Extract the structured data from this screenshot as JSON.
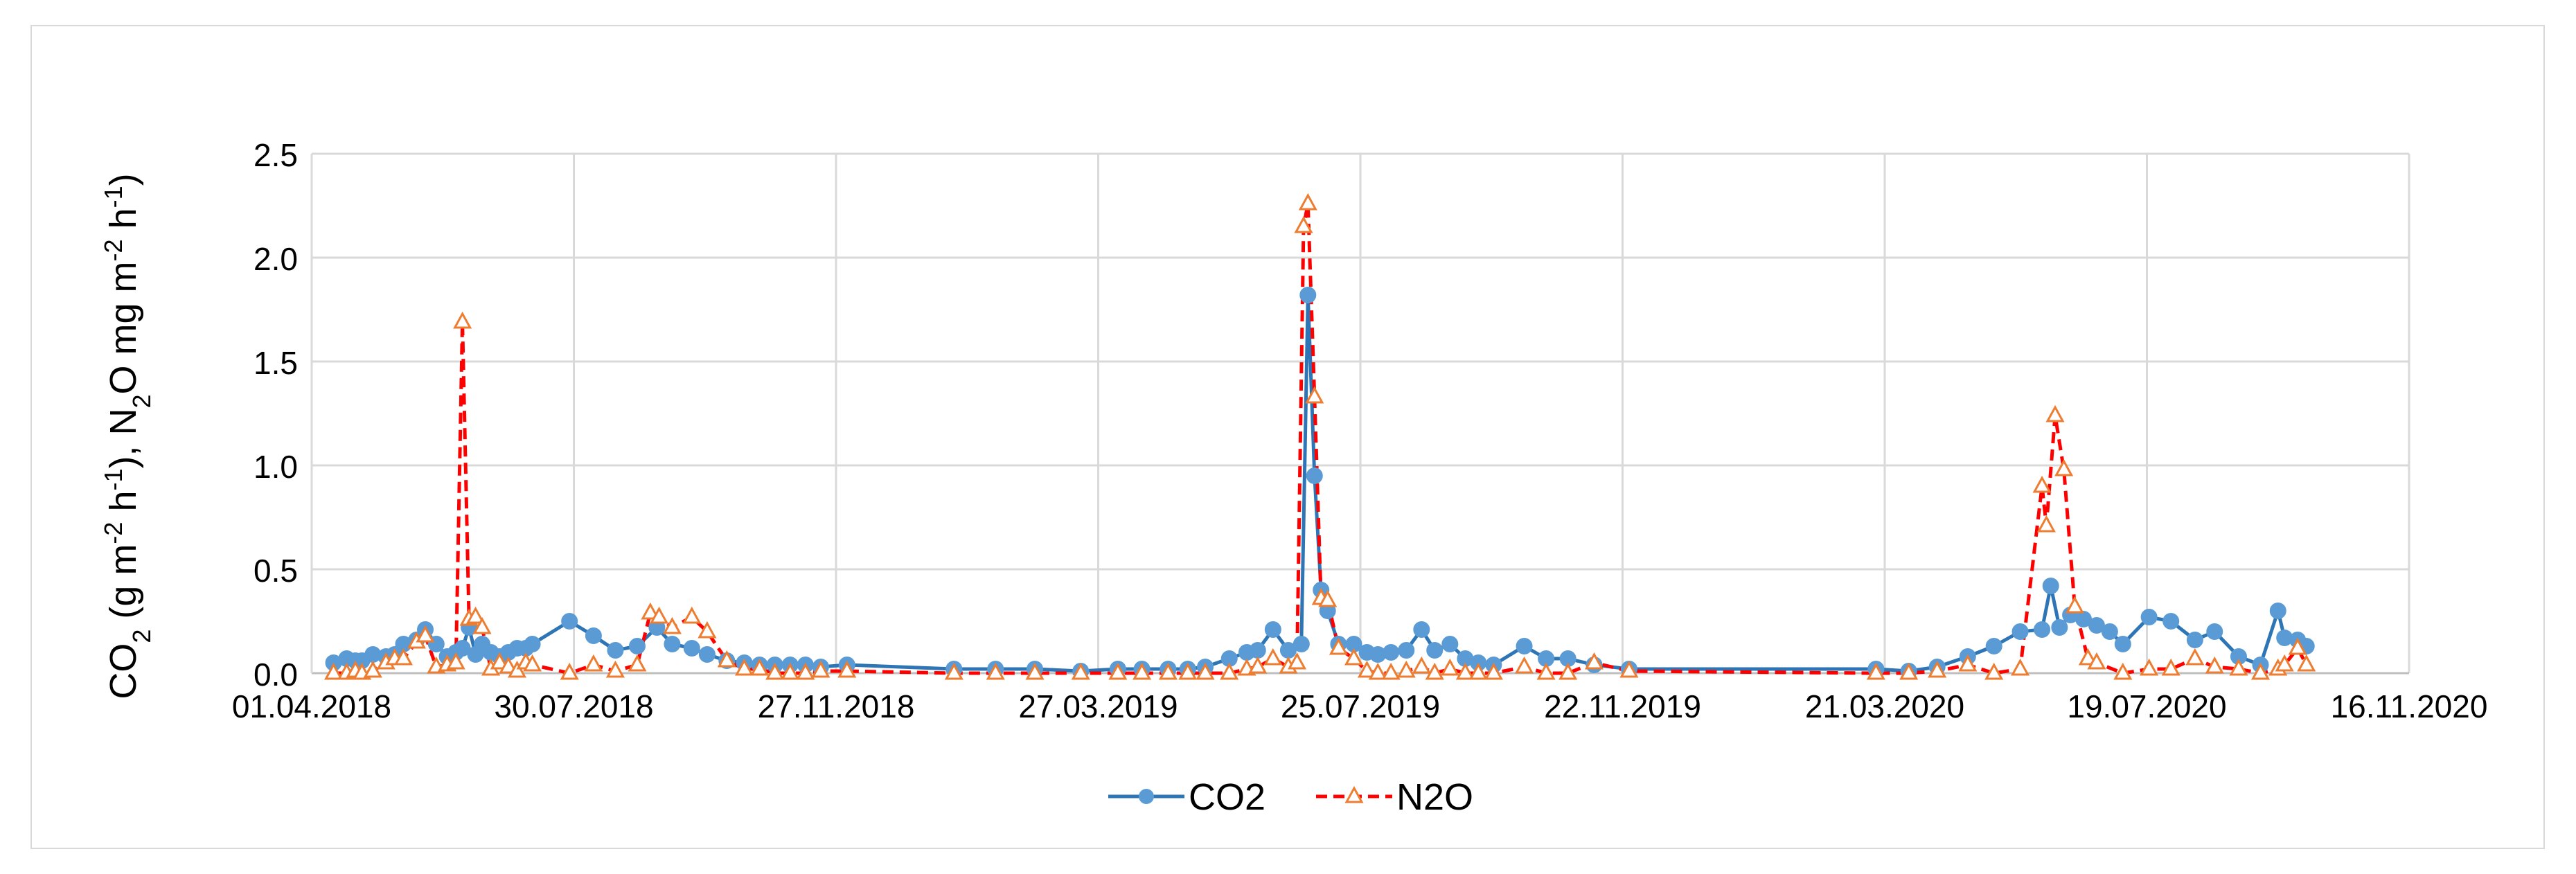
{
  "chart_data": {
    "type": "line",
    "title": "",
    "ylabel": {
      "parts": [
        {
          "t": "CO"
        },
        {
          "t": "2",
          "s": "sub"
        },
        {
          "t": " (g m"
        },
        {
          "t": "-2",
          "s": "sup"
        },
        {
          "t": " h"
        },
        {
          "t": "-1",
          "s": "sup"
        },
        {
          "t": "), N"
        },
        {
          "t": "2",
          "s": "sub"
        },
        {
          "t": "O mg m"
        },
        {
          "t": "-2",
          "s": "sup"
        },
        {
          "t": " h"
        },
        {
          "t": "-1",
          "s": "sup"
        },
        {
          "t": ")"
        }
      ]
    },
    "xlabel": "",
    "x_type": "date",
    "xlim": [
      "2018-04-01",
      "2020-11-16"
    ],
    "ylim": [
      0,
      2.5
    ],
    "x_ticks": [
      {
        "date": "2018-04-01",
        "label": "01.04.2018"
      },
      {
        "date": "2018-07-30",
        "label": "30.07.2018"
      },
      {
        "date": "2018-11-27",
        "label": "27.11.2018"
      },
      {
        "date": "2019-03-27",
        "label": "27.03.2019"
      },
      {
        "date": "2019-07-25",
        "label": "25.07.2019"
      },
      {
        "date": "2019-11-22",
        "label": "22.11.2019"
      },
      {
        "date": "2020-03-21",
        "label": "21.03.2020"
      },
      {
        "date": "2020-07-19",
        "label": "19.07.2020"
      },
      {
        "date": "2020-11-16",
        "label": "16.11.2020"
      }
    ],
    "y_ticks": [
      {
        "value": 0,
        "label": "0.0"
      },
      {
        "value": 0.5,
        "label": "0.5"
      },
      {
        "value": 1,
        "label": "1.0"
      },
      {
        "value": 1.5,
        "label": "1.5"
      },
      {
        "value": 2,
        "label": "2.0"
      },
      {
        "value": 2.5,
        "label": "2.5"
      }
    ],
    "grid": true,
    "legend_position": "bottom-center",
    "series": [
      {
        "name": "CO2",
        "color": "#5b9bd5",
        "line_color": "#2e75b6",
        "marker": "circle",
        "line_style": "solid",
        "points": [
          [
            "2018-04-11",
            0.05
          ],
          [
            "2018-04-17",
            0.07
          ],
          [
            "2018-04-21",
            0.06
          ],
          [
            "2018-04-24",
            0.06
          ],
          [
            "2018-04-29",
            0.09
          ],
          [
            "2018-05-05",
            0.08
          ],
          [
            "2018-05-09",
            0.09
          ],
          [
            "2018-05-13",
            0.14
          ],
          [
            "2018-05-19",
            0.16
          ],
          [
            "2018-05-23",
            0.21
          ],
          [
            "2018-05-28",
            0.14
          ],
          [
            "2018-06-02",
            0.08
          ],
          [
            "2018-06-06",
            0.1
          ],
          [
            "2018-06-09",
            0.12
          ],
          [
            "2018-06-12",
            0.22
          ],
          [
            "2018-06-15",
            0.09
          ],
          [
            "2018-06-18",
            0.14
          ],
          [
            "2018-06-22",
            0.1
          ],
          [
            "2018-06-26",
            0.08
          ],
          [
            "2018-06-30",
            0.1
          ],
          [
            "2018-07-04",
            0.12
          ],
          [
            "2018-07-08",
            0.12
          ],
          [
            "2018-07-11",
            0.14
          ],
          [
            "2018-07-28",
            0.25
          ],
          [
            "2018-08-08",
            0.18
          ],
          [
            "2018-08-18",
            0.11
          ],
          [
            "2018-08-28",
            0.13
          ],
          [
            "2018-09-06",
            0.22
          ],
          [
            "2018-09-13",
            0.14
          ],
          [
            "2018-09-22",
            0.12
          ],
          [
            "2018-09-29",
            0.09
          ],
          [
            "2018-10-08",
            0.06
          ],
          [
            "2018-10-16",
            0.05
          ],
          [
            "2018-10-23",
            0.04
          ],
          [
            "2018-10-30",
            0.04
          ],
          [
            "2018-11-06",
            0.04
          ],
          [
            "2018-11-13",
            0.04
          ],
          [
            "2018-11-20",
            0.03
          ],
          [
            "2018-12-02",
            0.04
          ],
          [
            "2019-01-20",
            0.02
          ],
          [
            "2019-02-08",
            0.02
          ],
          [
            "2019-02-26",
            0.02
          ],
          [
            "2019-03-19",
            0.01
          ],
          [
            "2019-04-05",
            0.02
          ],
          [
            "2019-04-16",
            0.02
          ],
          [
            "2019-04-28",
            0.02
          ],
          [
            "2019-05-07",
            0.02
          ],
          [
            "2019-05-15",
            0.03
          ],
          [
            "2019-05-26",
            0.07
          ],
          [
            "2019-06-03",
            0.1
          ],
          [
            "2019-06-08",
            0.11
          ],
          [
            "2019-06-15",
            0.21
          ],
          [
            "2019-06-22",
            0.11
          ],
          [
            "2019-06-28",
            0.14
          ],
          [
            "2019-07-01",
            1.82
          ],
          [
            "2019-07-04",
            0.95
          ],
          [
            "2019-07-07",
            0.4
          ],
          [
            "2019-07-10",
            0.3
          ],
          [
            "2019-07-15",
            0.14
          ],
          [
            "2019-07-22",
            0.14
          ],
          [
            "2019-07-28",
            0.1
          ],
          [
            "2019-08-02",
            0.09
          ],
          [
            "2019-08-08",
            0.1
          ],
          [
            "2019-08-15",
            0.11
          ],
          [
            "2019-08-22",
            0.21
          ],
          [
            "2019-08-28",
            0.11
          ],
          [
            "2019-09-04",
            0.14
          ],
          [
            "2019-09-11",
            0.07
          ],
          [
            "2019-09-17",
            0.05
          ],
          [
            "2019-09-24",
            0.04
          ],
          [
            "2019-10-08",
            0.13
          ],
          [
            "2019-10-18",
            0.07
          ],
          [
            "2019-10-28",
            0.07
          ],
          [
            "2019-11-09",
            0.04
          ],
          [
            "2019-11-25",
            0.02
          ],
          [
            "2020-03-17",
            0.02
          ],
          [
            "2020-04-01",
            0.01
          ],
          [
            "2020-04-14",
            0.03
          ],
          [
            "2020-04-28",
            0.08
          ],
          [
            "2020-05-10",
            0.13
          ],
          [
            "2020-05-22",
            0.2
          ],
          [
            "2020-06-01",
            0.21
          ],
          [
            "2020-06-05",
            0.42
          ],
          [
            "2020-06-09",
            0.22
          ],
          [
            "2020-06-14",
            0.28
          ],
          [
            "2020-06-20",
            0.26
          ],
          [
            "2020-06-26",
            0.23
          ],
          [
            "2020-07-02",
            0.2
          ],
          [
            "2020-07-08",
            0.14
          ],
          [
            "2020-07-20",
            0.27
          ],
          [
            "2020-07-30",
            0.25
          ],
          [
            "2020-08-10",
            0.16
          ],
          [
            "2020-08-19",
            0.2
          ],
          [
            "2020-08-30",
            0.08
          ],
          [
            "2020-09-09",
            0.04
          ],
          [
            "2020-09-17",
            0.3
          ],
          [
            "2020-09-20",
            0.17
          ],
          [
            "2020-09-26",
            0.16
          ],
          [
            "2020-09-30",
            0.13
          ]
        ]
      },
      {
        "name": "N2O",
        "color": "#ed7d31",
        "line_color": "#ff0000",
        "marker": "triangle",
        "line_style": "dashed",
        "points": [
          [
            "2018-04-11",
            0.0
          ],
          [
            "2018-04-17",
            0.0
          ],
          [
            "2018-04-21",
            0.01
          ],
          [
            "2018-04-24",
            0.0
          ],
          [
            "2018-04-29",
            0.01
          ],
          [
            "2018-05-05",
            0.05
          ],
          [
            "2018-05-09",
            0.07
          ],
          [
            "2018-05-13",
            0.07
          ],
          [
            "2018-05-19",
            0.15
          ],
          [
            "2018-05-23",
            0.18
          ],
          [
            "2018-05-28",
            0.03
          ],
          [
            "2018-06-02",
            0.04
          ],
          [
            "2018-06-06",
            0.05
          ],
          [
            "2018-06-09",
            1.69
          ],
          [
            "2018-06-12",
            0.26
          ],
          [
            "2018-06-15",
            0.27
          ],
          [
            "2018-06-18",
            0.22
          ],
          [
            "2018-06-22",
            0.02
          ],
          [
            "2018-06-26",
            0.05
          ],
          [
            "2018-06-30",
            0.03
          ],
          [
            "2018-07-04",
            0.01
          ],
          [
            "2018-07-08",
            0.05
          ],
          [
            "2018-07-11",
            0.04
          ],
          [
            "2018-07-28",
            0.0
          ],
          [
            "2018-08-08",
            0.04
          ],
          [
            "2018-08-18",
            0.01
          ],
          [
            "2018-08-28",
            0.04
          ],
          [
            "2018-09-03",
            0.29
          ],
          [
            "2018-09-07",
            0.27
          ],
          [
            "2018-09-13",
            0.22
          ],
          [
            "2018-09-22",
            0.27
          ],
          [
            "2018-09-29",
            0.2
          ],
          [
            "2018-10-08",
            0.06
          ],
          [
            "2018-10-16",
            0.02
          ],
          [
            "2018-10-23",
            0.02
          ],
          [
            "2018-10-30",
            0.0
          ],
          [
            "2018-11-06",
            0.0
          ],
          [
            "2018-11-13",
            0.0
          ],
          [
            "2018-11-20",
            0.01
          ],
          [
            "2018-12-02",
            0.01
          ],
          [
            "2019-01-20",
            0.0
          ],
          [
            "2019-02-08",
            0.0
          ],
          [
            "2019-02-26",
            0.0
          ],
          [
            "2019-03-19",
            0.0
          ],
          [
            "2019-04-05",
            0.0
          ],
          [
            "2019-04-16",
            0.0
          ],
          [
            "2019-04-28",
            0.0
          ],
          [
            "2019-05-07",
            0.0
          ],
          [
            "2019-05-15",
            0.0
          ],
          [
            "2019-05-26",
            0.0
          ],
          [
            "2019-06-03",
            0.02
          ],
          [
            "2019-06-08",
            0.03
          ],
          [
            "2019-06-15",
            0.07
          ],
          [
            "2019-06-22",
            0.03
          ],
          [
            "2019-06-26",
            0.05
          ],
          [
            "2019-06-29",
            2.15
          ],
          [
            "2019-07-01",
            2.26
          ],
          [
            "2019-07-04",
            1.33
          ],
          [
            "2019-07-07",
            0.36
          ],
          [
            "2019-07-10",
            0.35
          ],
          [
            "2019-07-15",
            0.12
          ],
          [
            "2019-07-22",
            0.07
          ],
          [
            "2019-07-28",
            0.01
          ],
          [
            "2019-08-02",
            0.0
          ],
          [
            "2019-08-08",
            0.0
          ],
          [
            "2019-08-15",
            0.01
          ],
          [
            "2019-08-22",
            0.03
          ],
          [
            "2019-08-28",
            0.0
          ],
          [
            "2019-09-04",
            0.02
          ],
          [
            "2019-09-11",
            0.0
          ],
          [
            "2019-09-17",
            0.0
          ],
          [
            "2019-09-24",
            0.0
          ],
          [
            "2019-10-08",
            0.03
          ],
          [
            "2019-10-18",
            0.0
          ],
          [
            "2019-10-28",
            0.0
          ],
          [
            "2019-11-09",
            0.05
          ],
          [
            "2019-11-25",
            0.01
          ],
          [
            "2020-03-17",
            0.0
          ],
          [
            "2020-04-01",
            0.0
          ],
          [
            "2020-04-14",
            0.01
          ],
          [
            "2020-04-28",
            0.04
          ],
          [
            "2020-05-10",
            0.0
          ],
          [
            "2020-05-22",
            0.02
          ],
          [
            "2020-06-01",
            0.9
          ],
          [
            "2020-06-03",
            0.71
          ],
          [
            "2020-06-07",
            1.24
          ],
          [
            "2020-06-11",
            0.98
          ],
          [
            "2020-06-16",
            0.32
          ],
          [
            "2020-06-22",
            0.07
          ],
          [
            "2020-06-26",
            0.05
          ],
          [
            "2020-07-08",
            0.0
          ],
          [
            "2020-07-20",
            0.02
          ],
          [
            "2020-07-30",
            0.02
          ],
          [
            "2020-08-10",
            0.07
          ],
          [
            "2020-08-19",
            0.03
          ],
          [
            "2020-08-30",
            0.02
          ],
          [
            "2020-09-09",
            0.0
          ],
          [
            "2020-09-17",
            0.02
          ],
          [
            "2020-09-20",
            0.04
          ],
          [
            "2020-09-26",
            0.12
          ],
          [
            "2020-09-30",
            0.04
          ]
        ]
      }
    ]
  }
}
